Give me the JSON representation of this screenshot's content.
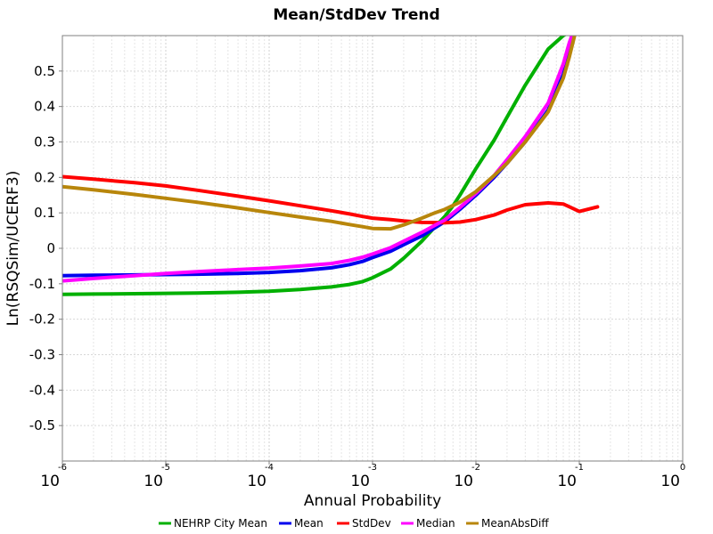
{
  "chart_data": {
    "type": "line",
    "title": "Mean/StdDev Trend",
    "xlabel": "Annual Probability",
    "ylabel": "Ln(RSQSim/UCERF3)",
    "x_scale": "log",
    "xlim": [
      1e-06,
      1
    ],
    "ylim": [
      -0.6,
      0.6
    ],
    "x_ticks": [
      {
        "base": "10",
        "exp": "-6"
      },
      {
        "base": "10",
        "exp": "-5"
      },
      {
        "base": "10",
        "exp": "-4"
      },
      {
        "base": "10",
        "exp": "-3"
      },
      {
        "base": "10",
        "exp": "-2"
      },
      {
        "base": "10",
        "exp": "-1"
      },
      {
        "base": "10",
        "exp": "0"
      }
    ],
    "y_ticks": [
      "0.5",
      "0.4",
      "0.3",
      "0.2",
      "0.1",
      "0",
      "-0.1",
      "-0.2",
      "-0.3",
      "-0.4",
      "-0.5"
    ],
    "y_tick_values": [
      0.5,
      0.4,
      0.3,
      0.2,
      0.1,
      0,
      -0.1,
      -0.2,
      -0.3,
      -0.4,
      -0.5
    ],
    "grid": true,
    "legend_position": "bottom",
    "series": [
      {
        "name": "NEHRP City Mean",
        "color": "#00b000",
        "x": [
          1e-06,
          2e-06,
          5e-06,
          1e-05,
          2e-05,
          5e-05,
          0.0001,
          0.0002,
          0.0004,
          0.0006,
          0.0008,
          0.001,
          0.0015,
          0.002,
          0.003,
          0.004,
          0.005,
          0.006,
          0.007,
          0.008,
          0.01,
          0.015,
          0.02,
          0.03,
          0.05,
          0.07,
          0.08
        ],
        "y": [
          -0.13,
          -0.129,
          -0.128,
          -0.127,
          -0.126,
          -0.124,
          -0.121,
          -0.116,
          -0.109,
          -0.102,
          -0.094,
          -0.083,
          -0.058,
          -0.028,
          0.02,
          0.06,
          0.09,
          0.12,
          0.15,
          0.178,
          0.225,
          0.305,
          0.37,
          0.46,
          0.562,
          0.6,
          0.61
        ]
      },
      {
        "name": "Mean",
        "color": "#0000ee",
        "x": [
          1e-06,
          2e-06,
          5e-06,
          1e-05,
          2e-05,
          5e-05,
          0.0001,
          0.0002,
          0.0004,
          0.0006,
          0.0008,
          0.001,
          0.0015,
          0.002,
          0.003,
          0.005,
          0.007,
          0.01,
          0.015,
          0.02,
          0.03,
          0.05,
          0.07,
          0.08,
          0.09
        ],
        "y": [
          -0.077,
          -0.076,
          -0.075,
          -0.074,
          -0.073,
          -0.071,
          -0.068,
          -0.063,
          -0.055,
          -0.046,
          -0.037,
          -0.026,
          -0.008,
          0.01,
          0.035,
          0.075,
          0.11,
          0.15,
          0.2,
          0.24,
          0.3,
          0.39,
          0.49,
          0.55,
          0.61
        ]
      },
      {
        "name": "StdDev",
        "color": "#ff0000",
        "x": [
          1e-06,
          2e-06,
          5e-06,
          1e-05,
          2e-05,
          5e-05,
          0.0001,
          0.0002,
          0.0004,
          0.0006,
          0.0008,
          0.001,
          0.0015,
          0.002,
          0.003,
          0.005,
          0.007,
          0.01,
          0.015,
          0.02,
          0.03,
          0.05,
          0.07,
          0.1,
          0.15
        ],
        "y": [
          0.202,
          0.195,
          0.185,
          0.176,
          0.164,
          0.147,
          0.134,
          0.12,
          0.106,
          0.097,
          0.09,
          0.085,
          0.081,
          0.077,
          0.073,
          0.072,
          0.074,
          0.081,
          0.094,
          0.108,
          0.123,
          0.128,
          0.125,
          0.104,
          0.117
        ]
      },
      {
        "name": "Median",
        "color": "#ff00ff",
        "x": [
          1e-06,
          2e-06,
          5e-06,
          1e-05,
          2e-05,
          5e-05,
          0.0001,
          0.0002,
          0.0004,
          0.0006,
          0.0008,
          0.001,
          0.0015,
          0.002,
          0.003,
          0.005,
          0.007,
          0.01,
          0.015,
          0.02,
          0.03,
          0.05,
          0.07,
          0.08,
          0.09
        ],
        "y": [
          -0.092,
          -0.085,
          -0.077,
          -0.071,
          -0.066,
          -0.06,
          -0.056,
          -0.05,
          -0.043,
          -0.034,
          -0.025,
          -0.016,
          0.002,
          0.02,
          0.045,
          0.08,
          0.115,
          0.155,
          0.205,
          0.25,
          0.315,
          0.41,
          0.52,
          0.58,
          0.62
        ]
      },
      {
        "name": "MeanAbsDiff",
        "color": "#b8860b",
        "x": [
          1e-06,
          2e-06,
          5e-06,
          1e-05,
          2e-05,
          5e-05,
          0.0001,
          0.0002,
          0.0004,
          0.0006,
          0.0008,
          0.001,
          0.0015,
          0.002,
          0.003,
          0.004,
          0.005,
          0.007,
          0.01,
          0.015,
          0.02,
          0.03,
          0.05,
          0.07,
          0.08,
          0.09
        ],
        "y": [
          0.174,
          0.165,
          0.152,
          0.141,
          0.13,
          0.114,
          0.101,
          0.088,
          0.076,
          0.067,
          0.061,
          0.056,
          0.055,
          0.066,
          0.085,
          0.1,
          0.11,
          0.13,
          0.16,
          0.205,
          0.24,
          0.3,
          0.385,
          0.48,
          0.54,
          0.6
        ]
      }
    ]
  }
}
